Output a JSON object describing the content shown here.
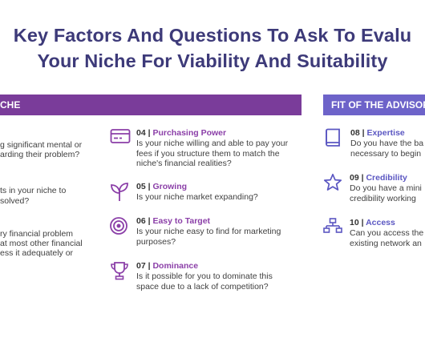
{
  "title": {
    "line1": "Key Factors And Questions To Ask To Evalu",
    "line2": "Your Niche For Viability And Suitability"
  },
  "sections": {
    "niche_label": "CHE",
    "advisor_label": "FIT OF THE ADVISOR"
  },
  "left_fragments": [
    "g significant mental or",
    "arding their problem?",
    "ts in your niche to",
    "solved?",
    "ry financial problem",
    "at most other financial",
    "ess it adequately or"
  ],
  "middle_items": [
    {
      "num": "04 |",
      "name": "Purchasing Power",
      "lines": [
        "Is your niche willing and able to pay your",
        "fees if you structure them to match the",
        "niche's financial realities?"
      ],
      "icon": "credit-card-icon"
    },
    {
      "num": "05 |",
      "name": "Growing",
      "lines": [
        "Is your niche market expanding?"
      ],
      "icon": "sprout-icon"
    },
    {
      "num": "06 |",
      "name": "Easy to Target",
      "lines": [
        "Is your niche easy to find for marketing",
        "purposes?"
      ],
      "icon": "target-icon"
    },
    {
      "num": "07 |",
      "name": "Dominance",
      "lines": [
        "Is it possible for you to dominate this",
        "space due to a lack of competition?"
      ],
      "icon": "trophy-icon"
    }
  ],
  "right_items": [
    {
      "num": "08 |",
      "name": "Expertise",
      "lines": [
        "Do you have the ba",
        "necessary to begin"
      ],
      "icon": "book-icon"
    },
    {
      "num": "09 |",
      "name": "Credibility",
      "lines": [
        "Do you have a mini",
        "credibility working"
      ],
      "icon": "star-icon"
    },
    {
      "num": "10 |",
      "name": "Access",
      "lines": [
        "Can you access the",
        "existing network an"
      ],
      "icon": "network-icon"
    }
  ],
  "colors": {
    "title": "#3d3a79",
    "niche_band": "#7a3c9a",
    "advisor_band": "#6d63c9",
    "icon_purple": "#8b3fa8",
    "icon_blue": "#5b57c2"
  }
}
